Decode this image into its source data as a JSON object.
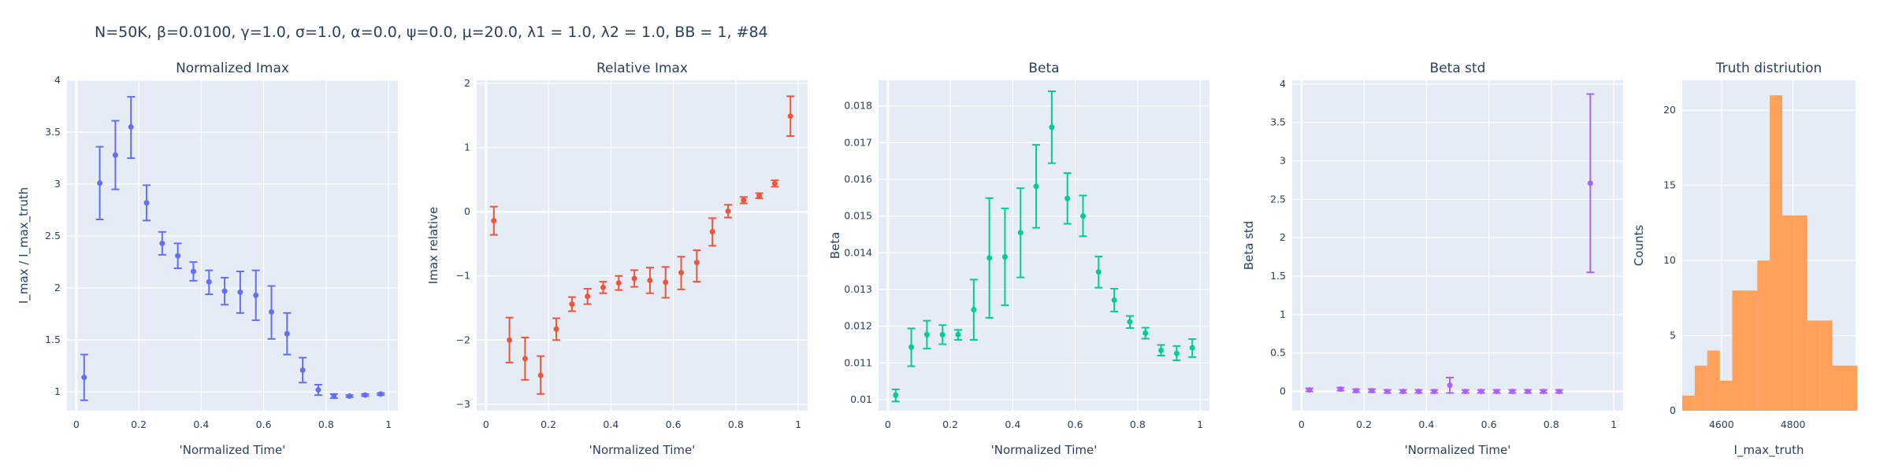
{
  "figure_title": "N=50K, β=0.0100, γ=1.0, σ=1.0,  α=0.0, ψ=0.0, μ=20.0, λ1 = 1.0, λ2 = 1.0, BB = 1, #84",
  "chart_data": [
    {
      "type": "scatter",
      "title": "Normalized Imax",
      "xlabel": "'Normalized Time'",
      "ylabel": "I_max / I_max_truth",
      "color": "#636efa",
      "xlim": [
        -0.03,
        1.03
      ],
      "ylim": [
        0.82,
        4.0
      ],
      "xticks": [
        0,
        0.2,
        0.4,
        0.6,
        0.8,
        1
      ],
      "xtick_labels": [
        "0",
        "0.2",
        "0.4",
        "0.6",
        "0.8",
        "1"
      ],
      "yticks": [
        1,
        1.5,
        2,
        2.5,
        3,
        3.5,
        4
      ],
      "ytick_labels": [
        "1",
        "1.5",
        "2",
        "2.5",
        "3",
        "3.5",
        "4"
      ],
      "zeroline_x": true,
      "zeroline_y": false,
      "points": [
        {
          "x": 0.025,
          "y": 1.14,
          "lo": 0.92,
          "hi": 1.36
        },
        {
          "x": 0.075,
          "y": 3.01,
          "lo": 2.66,
          "hi": 3.36
        },
        {
          "x": 0.125,
          "y": 3.28,
          "lo": 2.95,
          "hi": 3.61
        },
        {
          "x": 0.175,
          "y": 3.55,
          "lo": 3.25,
          "hi": 3.84
        },
        {
          "x": 0.225,
          "y": 2.82,
          "lo": 2.65,
          "hi": 2.99
        },
        {
          "x": 0.275,
          "y": 2.43,
          "lo": 2.32,
          "hi": 2.54
        },
        {
          "x": 0.325,
          "y": 2.31,
          "lo": 2.19,
          "hi": 2.43
        },
        {
          "x": 0.375,
          "y": 2.16,
          "lo": 2.07,
          "hi": 2.25
        },
        {
          "x": 0.425,
          "y": 2.06,
          "lo": 1.94,
          "hi": 2.17
        },
        {
          "x": 0.475,
          "y": 1.97,
          "lo": 1.84,
          "hi": 2.1
        },
        {
          "x": 0.525,
          "y": 1.96,
          "lo": 1.76,
          "hi": 2.16
        },
        {
          "x": 0.575,
          "y": 1.93,
          "lo": 1.69,
          "hi": 2.17
        },
        {
          "x": 0.625,
          "y": 1.77,
          "lo": 1.51,
          "hi": 2.02
        },
        {
          "x": 0.675,
          "y": 1.56,
          "lo": 1.36,
          "hi": 1.76
        },
        {
          "x": 0.725,
          "y": 1.21,
          "lo": 1.09,
          "hi": 1.33
        },
        {
          "x": 0.775,
          "y": 1.02,
          "lo": 0.97,
          "hi": 1.07
        },
        {
          "x": 0.825,
          "y": 0.96,
          "lo": 0.94,
          "hi": 0.98
        },
        {
          "x": 0.875,
          "y": 0.96,
          "lo": 0.95,
          "hi": 0.97
        },
        {
          "x": 0.925,
          "y": 0.97,
          "lo": 0.96,
          "hi": 0.98
        },
        {
          "x": 0.975,
          "y": 0.98,
          "lo": 0.97,
          "hi": 0.99
        }
      ]
    },
    {
      "type": "scatter",
      "title": "Relative Imax",
      "xlabel": "'Normalized Time'",
      "ylabel": "Imax relative",
      "color": "#ef553b",
      "xlim": [
        -0.03,
        1.03
      ],
      "ylim": [
        -3.1,
        2.05
      ],
      "xticks": [
        0,
        0.2,
        0.4,
        0.6,
        0.8,
        1
      ],
      "xtick_labels": [
        "0",
        "0.2",
        "0.4",
        "0.6",
        "0.8",
        "1"
      ],
      "yticks": [
        -3,
        -2,
        -1,
        0,
        1,
        2
      ],
      "ytick_labels": [
        "−3",
        "−2",
        "−1",
        "0",
        "1",
        "2"
      ],
      "zeroline_x": true,
      "zeroline_y": true,
      "points": [
        {
          "x": 0.025,
          "y": -0.14,
          "lo": -0.36,
          "hi": 0.08
        },
        {
          "x": 0.075,
          "y": -2.0,
          "lo": -2.35,
          "hi": -1.65
        },
        {
          "x": 0.125,
          "y": -2.29,
          "lo": -2.62,
          "hi": -1.96
        },
        {
          "x": 0.175,
          "y": -2.55,
          "lo": -2.84,
          "hi": -2.25
        },
        {
          "x": 0.225,
          "y": -1.83,
          "lo": -2.0,
          "hi": -1.66
        },
        {
          "x": 0.275,
          "y": -1.44,
          "lo": -1.55,
          "hi": -1.33
        },
        {
          "x": 0.325,
          "y": -1.32,
          "lo": -1.44,
          "hi": -1.2
        },
        {
          "x": 0.375,
          "y": -1.18,
          "lo": -1.27,
          "hi": -1.09
        },
        {
          "x": 0.425,
          "y": -1.11,
          "lo": -1.22,
          "hi": -1.0
        },
        {
          "x": 0.475,
          "y": -1.04,
          "lo": -1.17,
          "hi": -0.91
        },
        {
          "x": 0.525,
          "y": -1.07,
          "lo": -1.27,
          "hi": -0.87
        },
        {
          "x": 0.575,
          "y": -1.1,
          "lo": -1.34,
          "hi": -0.86
        },
        {
          "x": 0.625,
          "y": -0.95,
          "lo": -1.21,
          "hi": -0.7
        },
        {
          "x": 0.675,
          "y": -0.79,
          "lo": -1.09,
          "hi": -0.6
        },
        {
          "x": 0.725,
          "y": -0.31,
          "lo": -0.53,
          "hi": -0.1
        },
        {
          "x": 0.775,
          "y": 0.01,
          "lo": -0.09,
          "hi": 0.11
        },
        {
          "x": 0.825,
          "y": 0.18,
          "lo": 0.13,
          "hi": 0.23
        },
        {
          "x": 0.875,
          "y": 0.25,
          "lo": 0.21,
          "hi": 0.29
        },
        {
          "x": 0.925,
          "y": 0.44,
          "lo": 0.39,
          "hi": 0.49
        },
        {
          "x": 0.975,
          "y": 1.49,
          "lo": 1.18,
          "hi": 1.8
        }
      ]
    },
    {
      "type": "scatter",
      "title": "Beta",
      "xlabel": "'Normalized Time'",
      "ylabel": "Beta",
      "color": "#00cc96",
      "xlim": [
        -0.03,
        1.03
      ],
      "ylim": [
        0.0097,
        0.0187
      ],
      "xticks": [
        0,
        0.2,
        0.4,
        0.6,
        0.8,
        1
      ],
      "xtick_labels": [
        "0",
        "0.2",
        "0.4",
        "0.6",
        "0.8",
        "1"
      ],
      "yticks": [
        0.01,
        0.011,
        0.012,
        0.013,
        0.014,
        0.015,
        0.016,
        0.017,
        0.018
      ],
      "ytick_labels": [
        "0.01",
        "0.011",
        "0.012",
        "0.013",
        "0.014",
        "0.015",
        "0.016",
        "0.017",
        "0.018"
      ],
      "zeroline_x": true,
      "zeroline_y": false,
      "points": [
        {
          "x": 0.025,
          "y": 0.01012,
          "lo": 0.00995,
          "hi": 0.01028
        },
        {
          "x": 0.075,
          "y": 0.01143,
          "lo": 0.01091,
          "hi": 0.01194
        },
        {
          "x": 0.125,
          "y": 0.01177,
          "lo": 0.01139,
          "hi": 0.01215
        },
        {
          "x": 0.175,
          "y": 0.01177,
          "lo": 0.01151,
          "hi": 0.01203
        },
        {
          "x": 0.225,
          "y": 0.01177,
          "lo": 0.01163,
          "hi": 0.0119
        },
        {
          "x": 0.275,
          "y": 0.01245,
          "lo": 0.01163,
          "hi": 0.01327
        },
        {
          "x": 0.325,
          "y": 0.01386,
          "lo": 0.01223,
          "hi": 0.01549
        },
        {
          "x": 0.375,
          "y": 0.01389,
          "lo": 0.01257,
          "hi": 0.01521
        },
        {
          "x": 0.425,
          "y": 0.01455,
          "lo": 0.01333,
          "hi": 0.01576
        },
        {
          "x": 0.475,
          "y": 0.01581,
          "lo": 0.01468,
          "hi": 0.01694
        },
        {
          "x": 0.525,
          "y": 0.01742,
          "lo": 0.01644,
          "hi": 0.0184
        },
        {
          "x": 0.575,
          "y": 0.01548,
          "lo": 0.01479,
          "hi": 0.01617
        },
        {
          "x": 0.625,
          "y": 0.015,
          "lo": 0.01445,
          "hi": 0.01556
        },
        {
          "x": 0.675,
          "y": 0.01348,
          "lo": 0.01305,
          "hi": 0.0139
        },
        {
          "x": 0.725,
          "y": 0.01271,
          "lo": 0.0124,
          "hi": 0.01302
        },
        {
          "x": 0.775,
          "y": 0.01212,
          "lo": 0.01195,
          "hi": 0.01228
        },
        {
          "x": 0.825,
          "y": 0.01181,
          "lo": 0.01166,
          "hi": 0.01196
        },
        {
          "x": 0.875,
          "y": 0.01134,
          "lo": 0.0112,
          "hi": 0.01149
        },
        {
          "x": 0.925,
          "y": 0.01126,
          "lo": 0.01107,
          "hi": 0.01146
        },
        {
          "x": 0.975,
          "y": 0.01141,
          "lo": 0.01116,
          "hi": 0.01165
        }
      ]
    },
    {
      "type": "scatter",
      "title": "Beta std",
      "xlabel": "'Normalized Time'",
      "ylabel": "Beta std",
      "color": "#ab63fa",
      "xlim": [
        -0.03,
        1.03
      ],
      "ylim": [
        -0.25,
        4.05
      ],
      "xticks": [
        0,
        0.2,
        0.4,
        0.6,
        0.8,
        1
      ],
      "xtick_labels": [
        "0",
        "0.2",
        "0.4",
        "0.6",
        "0.8",
        "1"
      ],
      "yticks": [
        0,
        0.5,
        1,
        1.5,
        2,
        2.5,
        3,
        3.5,
        4
      ],
      "ytick_labels": [
        "0",
        "0.5",
        "1",
        "1.5",
        "2",
        "2.5",
        "3",
        "3.5",
        "4"
      ],
      "zeroline_x": true,
      "zeroline_y": true,
      "points": [
        {
          "x": 0.025,
          "y": 0.02,
          "lo": 0.0,
          "hi": 0.04
        },
        {
          "x": 0.125,
          "y": 0.03,
          "lo": 0.01,
          "hi": 0.05
        },
        {
          "x": 0.175,
          "y": 0.01,
          "lo": -0.01,
          "hi": 0.03
        },
        {
          "x": 0.225,
          "y": 0.01,
          "lo": -0.01,
          "hi": 0.03
        },
        {
          "x": 0.275,
          "y": 0.0,
          "lo": -0.02,
          "hi": 0.02
        },
        {
          "x": 0.325,
          "y": 0.0,
          "lo": -0.02,
          "hi": 0.02
        },
        {
          "x": 0.375,
          "y": 0.0,
          "lo": -0.02,
          "hi": 0.02
        },
        {
          "x": 0.425,
          "y": 0.0,
          "lo": -0.02,
          "hi": 0.02
        },
        {
          "x": 0.475,
          "y": 0.08,
          "lo": -0.02,
          "hi": 0.18
        },
        {
          "x": 0.525,
          "y": 0.0,
          "lo": -0.02,
          "hi": 0.02
        },
        {
          "x": 0.575,
          "y": 0.0,
          "lo": -0.02,
          "hi": 0.02
        },
        {
          "x": 0.625,
          "y": 0.0,
          "lo": -0.02,
          "hi": 0.02
        },
        {
          "x": 0.675,
          "y": 0.0,
          "lo": -0.02,
          "hi": 0.02
        },
        {
          "x": 0.725,
          "y": 0.0,
          "lo": -0.02,
          "hi": 0.02
        },
        {
          "x": 0.775,
          "y": 0.0,
          "lo": -0.02,
          "hi": 0.02
        },
        {
          "x": 0.825,
          "y": 0.0,
          "lo": -0.02,
          "hi": 0.02
        },
        {
          "x": 0.925,
          "y": 2.71,
          "lo": 1.55,
          "hi": 3.87
        }
      ]
    },
    {
      "type": "bar",
      "title": "Truth distriution",
      "xlabel": "I_max_truth",
      "ylabel": "Counts",
      "color": "#FFA15A",
      "xlim": [
        4490,
        4975
      ],
      "ylim": [
        0,
        22
      ],
      "xticks": [
        4600,
        4800
      ],
      "xtick_labels": [
        "4600",
        "4800"
      ],
      "yticks": [
        0,
        5,
        10,
        15,
        20
      ],
      "ytick_labels": [
        "0",
        "5",
        "10",
        "15",
        "20"
      ],
      "bin_width": 35,
      "bin_starts": [
        4490,
        4525,
        4560,
        4595,
        4630,
        4665,
        4700,
        4735,
        4770,
        4805,
        4840,
        4875,
        4910,
        4945
      ],
      "counts": [
        1,
        3,
        4,
        2,
        8,
        8,
        10,
        21,
        13,
        13,
        6,
        6,
        3,
        3
      ]
    }
  ]
}
